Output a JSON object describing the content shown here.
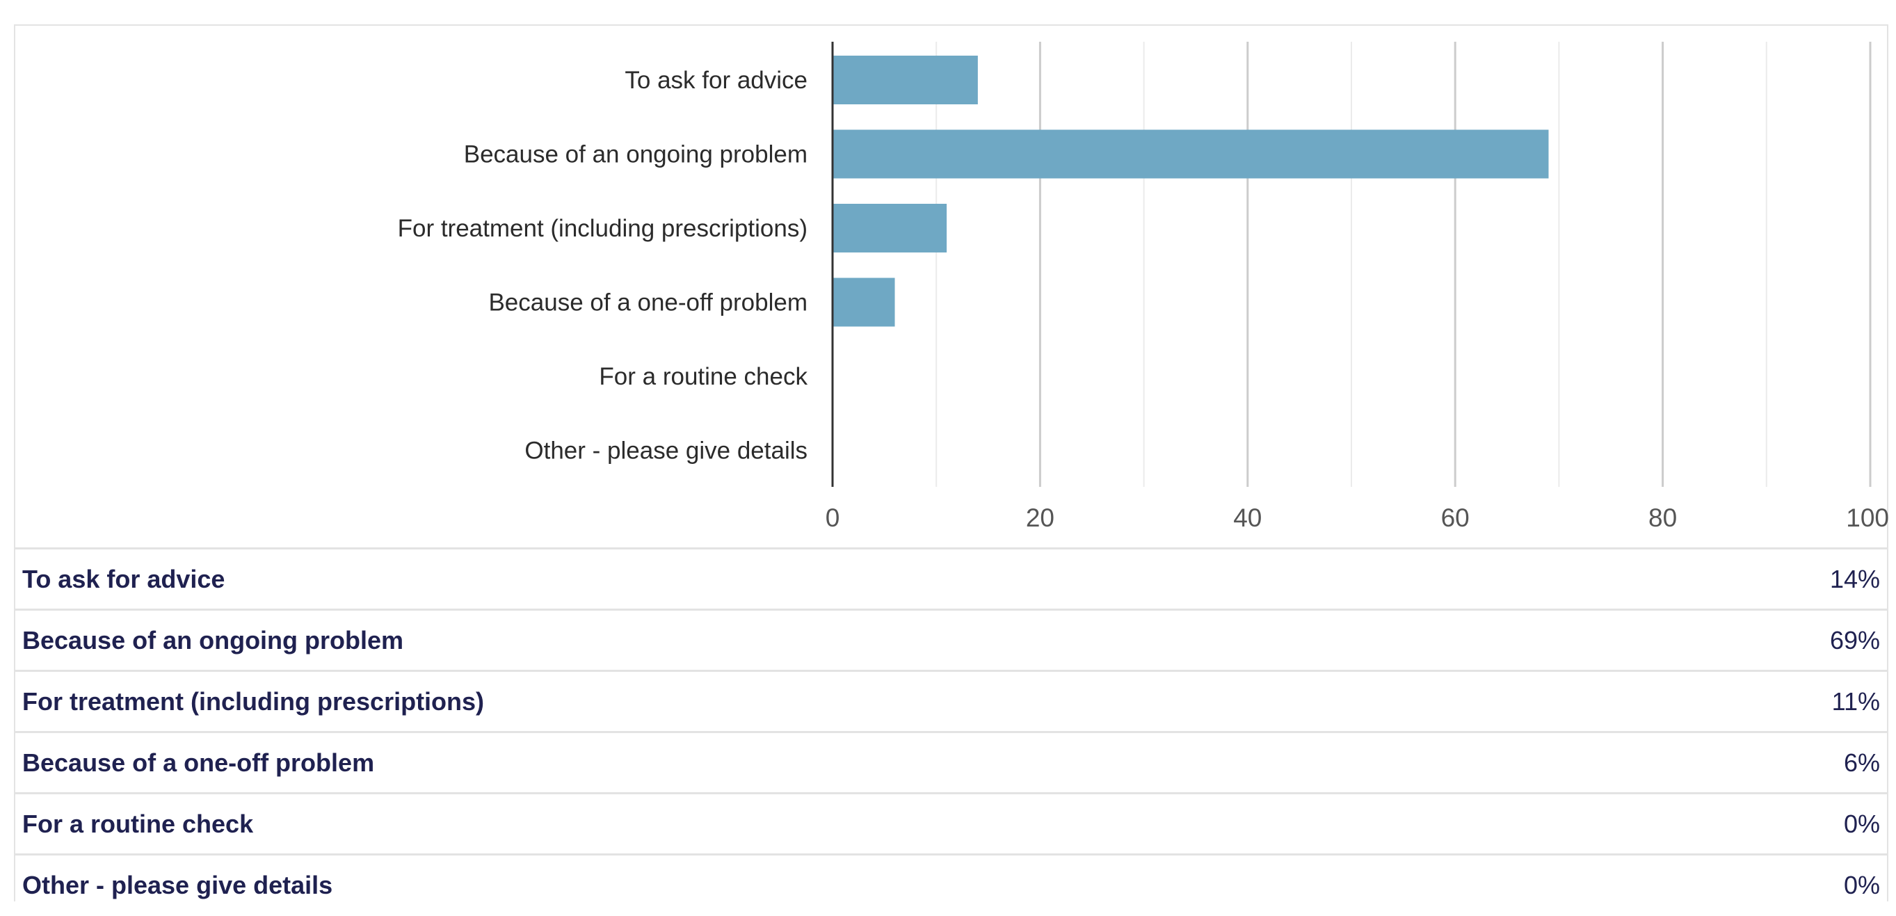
{
  "chart_data": {
    "type": "bar",
    "orientation": "horizontal",
    "categories": [
      "To ask for advice",
      "Because of an ongoing problem",
      "For treatment (including prescriptions)",
      "Because of a one-off problem",
      "For a routine check",
      "Other - please give details"
    ],
    "values": [
      14,
      69,
      11,
      6,
      0,
      0
    ],
    "xlim": [
      0,
      100
    ],
    "xticks": [
      "0",
      "20",
      "40",
      "60",
      "80",
      "100"
    ],
    "grid": true,
    "bar_color": "#6fa8c4"
  },
  "table": {
    "rows": [
      {
        "label": "To ask for advice",
        "value": "14%"
      },
      {
        "label": "Because of an ongoing problem",
        "value": "69%"
      },
      {
        "label": "For treatment (including prescriptions)",
        "value": "11%"
      },
      {
        "label": "Because of a one-off problem",
        "value": "6%"
      },
      {
        "label": "For a routine check",
        "value": "0%"
      },
      {
        "label": "Other - please give details",
        "value": "0%"
      }
    ]
  }
}
